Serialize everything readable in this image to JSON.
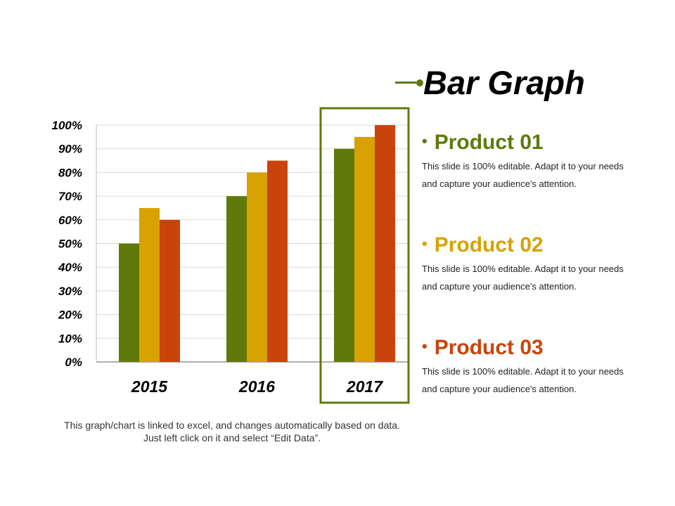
{
  "title": "Bar Graph",
  "colors": {
    "accent": "#5f7a0b",
    "product_01": "#5f7a0b",
    "product_02": "#d7a202",
    "product_03": "#c9440b",
    "gridline": "#d9d9d9"
  },
  "chart_data": {
    "type": "bar",
    "categories": [
      "2015",
      "2016",
      "2017"
    ],
    "series": [
      {
        "name": "Product 01",
        "values": [
          50,
          70,
          90
        ]
      },
      {
        "name": "Product 02",
        "values": [
          65,
          80,
          95
        ]
      },
      {
        "name": "Product 03",
        "values": [
          60,
          85,
          100
        ]
      }
    ],
    "ylim": [
      0,
      100
    ],
    "yticks": [
      "0%",
      "10%",
      "20%",
      "30%",
      "40%",
      "50%",
      "60%",
      "70%",
      "80%",
      "90%",
      "100%"
    ],
    "grid": true,
    "highlighted_category": "2017"
  },
  "products": [
    {
      "name": "Product 01",
      "description": "This slide is 100% editable. Adapt it to your needs and capture your audience's attention."
    },
    {
      "name": "Product 02",
      "description": "This slide is 100% editable. Adapt it to your needs and capture your audience's attention."
    },
    {
      "name": "Product 03",
      "description": "This slide is 100% editable. Adapt it to your needs and capture your audience's attention."
    }
  ],
  "footnote": "This graph/chart is linked to excel, and changes automatically based on data. Just left click on it and select “Edit Data”."
}
